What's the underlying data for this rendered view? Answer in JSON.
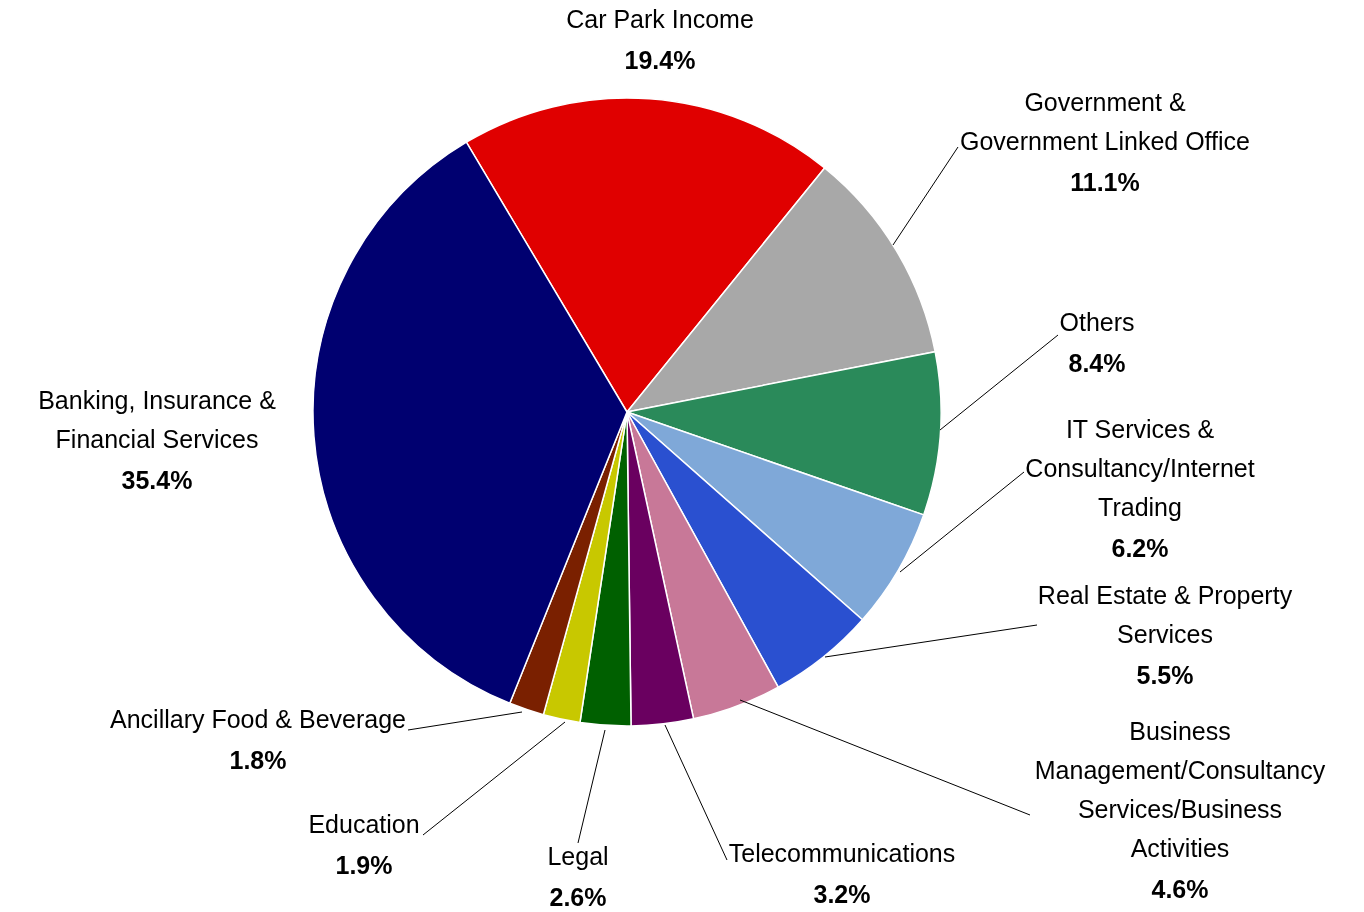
{
  "chart_data": {
    "type": "pie",
    "categories": [
      "Car Park Income",
      "Government &\nGovernment Linked Office",
      "Others",
      "IT Services &\nConsultancy/Internet\nTrading",
      "Real Estate & Property\nServices",
      "Business\nManagement/Consultancy\nServices/Business\nActivities",
      "Telecommunications",
      "Legal",
      "Education",
      "Ancillary Food & Beverage",
      "Banking, Insurance &\nFinancial Services"
    ],
    "values": [
      19.4,
      11.1,
      8.4,
      6.2,
      5.5,
      4.6,
      3.2,
      2.6,
      1.9,
      1.8,
      35.4
    ],
    "colors": [
      "#e00000",
      "#a8a8a8",
      "#2a8a5a",
      "#7fa8d8",
      "#2a50d0",
      "#c87898",
      "#6a0060",
      "#006000",
      "#c8c800",
      "#7a2000",
      "#000070"
    ],
    "value_labels": [
      "19.4%",
      "11.1%",
      "8.4%",
      "6.2%",
      "5.5%",
      "4.6%",
      "3.2%",
      "2.6%",
      "1.9%",
      "1.8%",
      "35.4%"
    ]
  }
}
